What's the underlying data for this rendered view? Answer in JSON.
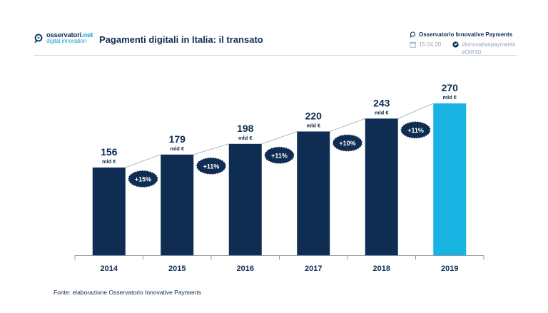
{
  "header": {
    "logo_line1_a": "osservatori",
    "logo_line1_b": ".net",
    "logo_line2": "digital innovation",
    "title": "Pagamenti digitali in Italia: il transato",
    "observatory": "Osservatorio Innovative Payments",
    "date": "15.04.20",
    "hashtag1": "#innovativepayments",
    "hashtag2": "#OIP20"
  },
  "chart_data": {
    "type": "bar",
    "categories": [
      "2014",
      "2015",
      "2016",
      "2017",
      "2018",
      "2019"
    ],
    "values": [
      156,
      179,
      198,
      220,
      243,
      270
    ],
    "unit": "mld €",
    "growth_labels": [
      "+15%",
      "+11%",
      "+11%",
      "+10%",
      "+11%"
    ],
    "highlight_index": 5,
    "colors": {
      "bar": "#0f2d52",
      "highlight": "#1ab4e3",
      "badge": "#0f2d52"
    }
  },
  "footer": {
    "source": "Fonte: elaborazione Osservatorio Innovative Payments"
  }
}
